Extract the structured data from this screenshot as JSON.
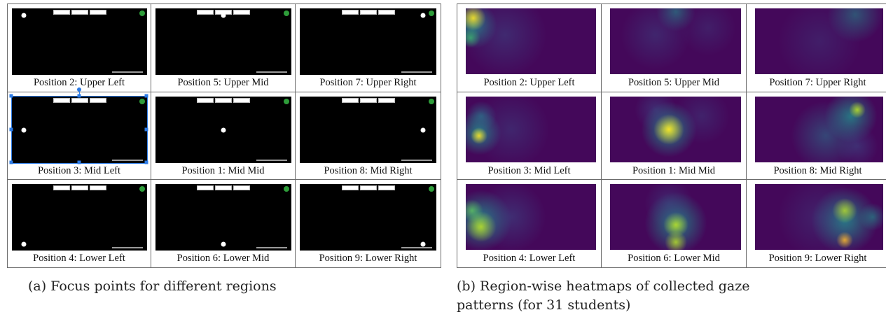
{
  "left_panel": {
    "cells": [
      {
        "label": "Position 2: Upper Left"
      },
      {
        "label": "Position 5: Upper Mid"
      },
      {
        "label": "Position 7: Upper Right"
      },
      {
        "label": "Position 3: Mid Left"
      },
      {
        "label": "Position 1: Mid Mid"
      },
      {
        "label": "Position 8: Mid Right"
      },
      {
        "label": "Position 4: Lower Left"
      },
      {
        "label": "Position 6: Lower Mid"
      },
      {
        "label": "Position 9: Lower Right"
      }
    ],
    "caption": "(a) Focus points for different regions"
  },
  "right_panel": {
    "cells": [
      {
        "label": "Position 2: Upper Left"
      },
      {
        "label": "Position 5: Upper Mid"
      },
      {
        "label": "Position 7: Upper Right"
      },
      {
        "label": "Position 3: Mid Left"
      },
      {
        "label": "Position 1: Mid Mid"
      },
      {
        "label": "Position 8: Mid Right"
      },
      {
        "label": "Position 4: Lower Left"
      },
      {
        "label": "Position 6: Lower Mid"
      },
      {
        "label": "Position 9: Lower Right"
      }
    ],
    "caption_line1": "(b) Region-wise heatmaps of collected gaze",
    "caption_line2": "patterns (for 31 students)"
  },
  "colors": {
    "screen_background": "#000000",
    "heatmap_low": "#44085a",
    "heatmap_mid": "#21908c",
    "heatmap_high": "#fde725",
    "selection": "#2d7be5",
    "status_green": "#2e9d3a"
  }
}
